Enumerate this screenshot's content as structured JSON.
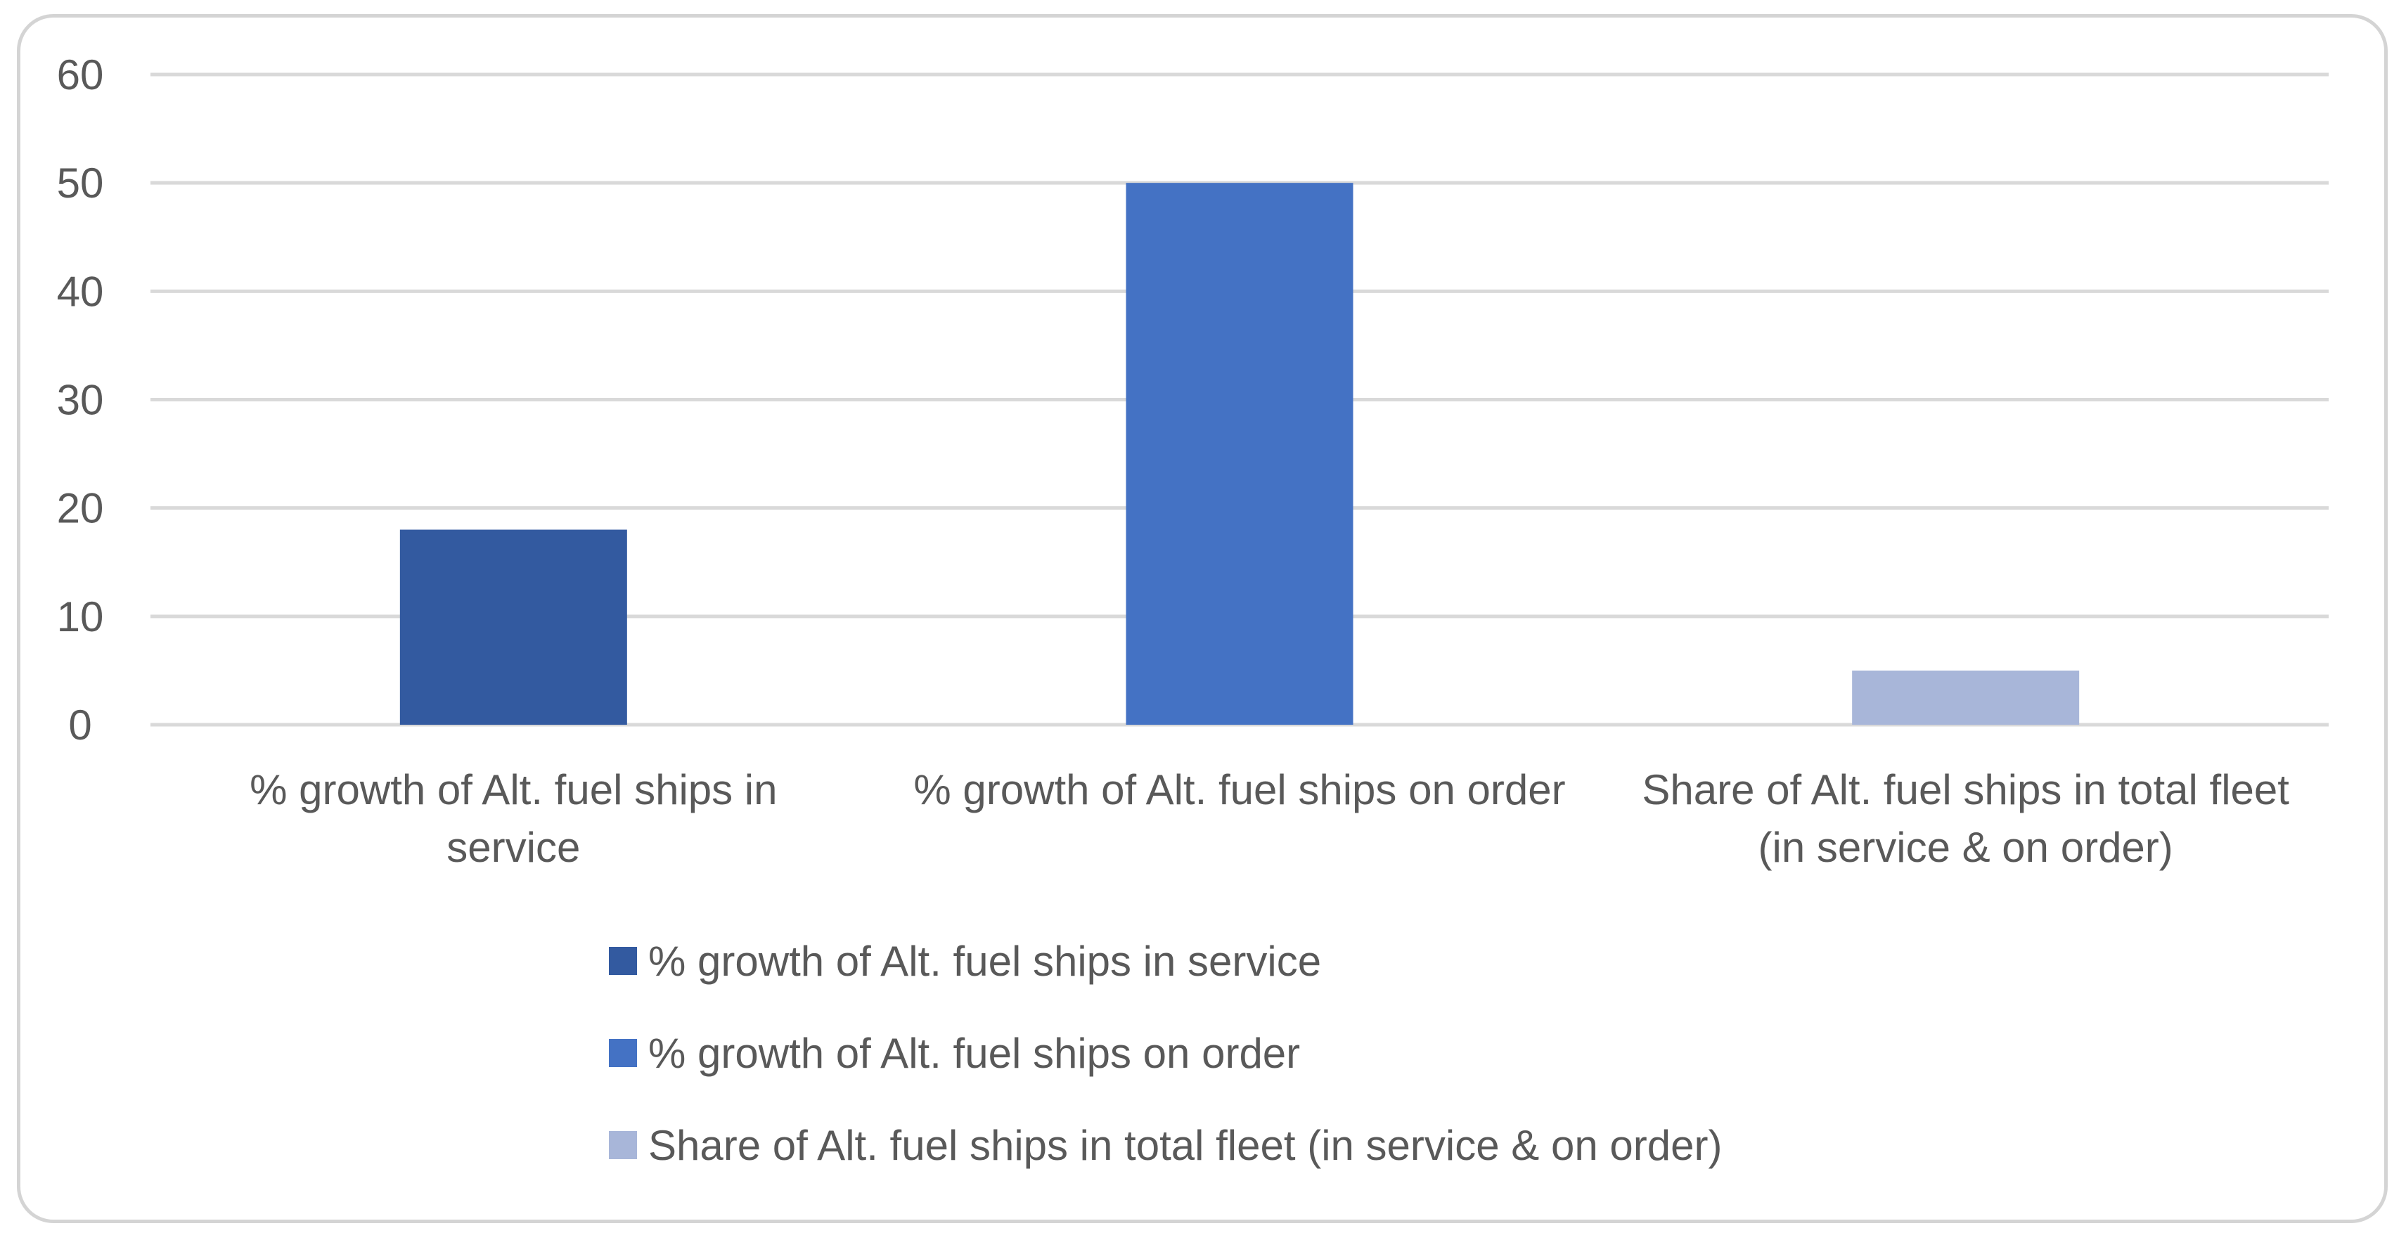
{
  "chart_data": {
    "type": "bar",
    "title": "",
    "xlabel": "",
    "ylabel": "",
    "ylim": [
      0,
      60
    ],
    "yticks": [
      0,
      10,
      20,
      30,
      40,
      50,
      60
    ],
    "grid": true,
    "legend_position": "bottom",
    "categories": [
      "% growth of Alt. fuel  ships in service",
      "% growth of Alt. fuel ships on order",
      "Share of Alt. fuel ships in total fleet (in service & on order)"
    ],
    "category_label_lines": [
      [
        "% growth of Alt. fuel  ships in",
        "service"
      ],
      [
        "% growth of Alt. fuel ships on order"
      ],
      [
        "Share of Alt. fuel ships in total fleet",
        "(in service & on order)"
      ]
    ],
    "values": [
      18,
      50,
      5
    ],
    "colors": [
      "#335aa0",
      "#4472c4",
      "#a8b6d9"
    ],
    "legend": [
      "% growth of Alt. fuel  ships in service",
      "% growth of Alt. fuel ships on order",
      "Share of Alt. fuel ships in total fleet (in service & on order)"
    ],
    "gridline_color": "#d9d9d9",
    "text_color": "#595959"
  }
}
